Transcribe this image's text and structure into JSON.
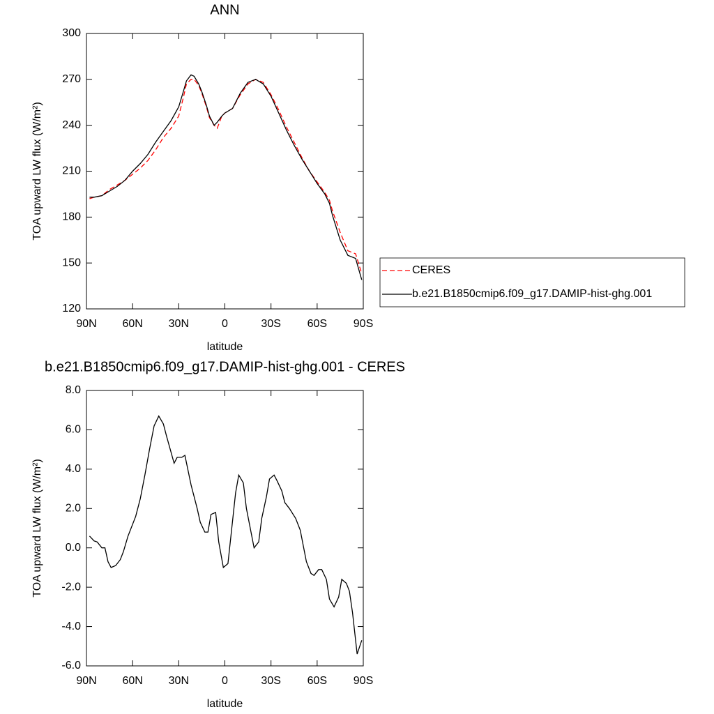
{
  "chart_data": [
    {
      "type": "line",
      "title": "ANN",
      "xlabel": "latitude",
      "ylabel": "TOA upward LW flux (W/m²)",
      "x": [
        88,
        85,
        80,
        75,
        70,
        65,
        60,
        55,
        50,
        45,
        40,
        35,
        30,
        27,
        25,
        22,
        20,
        17,
        15,
        12,
        10,
        7,
        5,
        2,
        0,
        -5,
        -10,
        -15,
        -20,
        -25,
        -30,
        -35,
        -40,
        -45,
        -50,
        -55,
        -60,
        -65,
        -68,
        -70,
        -75,
        -80,
        -85,
        -89
      ],
      "series": [
        {
          "name": "CERES",
          "color": "#ff0000",
          "linestyle": "dashed",
          "values": [
            192,
            193,
            194,
            198,
            201,
            204,
            208,
            212,
            217,
            224,
            232,
            238,
            246,
            258,
            267,
            270,
            270,
            266,
            261,
            252,
            245,
            240,
            238,
            246,
            248,
            251,
            260,
            267,
            270,
            268,
            260,
            250,
            239,
            229,
            219,
            210,
            203,
            196,
            191,
            184,
            170,
            158,
            156,
            143
          ]
        },
        {
          "name": "b.e21.B1850cmip6.f09_g17.DAMIP-hist-ghg.001",
          "color": "#000000",
          "linestyle": "solid",
          "values": [
            193,
            193,
            194,
            197,
            200,
            204,
            210,
            215,
            221,
            229,
            236,
            243,
            252,
            262,
            269,
            273,
            272,
            267,
            262,
            253,
            246,
            240,
            242,
            246,
            248,
            251,
            261,
            268,
            270,
            267,
            259,
            248,
            237,
            227,
            218,
            210,
            202,
            195,
            189,
            181,
            165,
            155,
            153,
            139
          ]
        }
      ],
      "xlim": [
        90,
        -90
      ],
      "ylim": [
        120,
        300
      ],
      "xticks": [
        {
          "value": 90,
          "label": "90N"
        },
        {
          "value": 60,
          "label": "60N"
        },
        {
          "value": 30,
          "label": "30N"
        },
        0,
        {
          "value": -30,
          "label": "30S"
        },
        {
          "value": -60,
          "label": "60S"
        },
        {
          "value": -90,
          "label": "90S"
        }
      ],
      "yticks": [
        120,
        150,
        180,
        210,
        240,
        270,
        300
      ],
      "legend": "right"
    },
    {
      "type": "line",
      "title": "b.e21.B1850cmip6.f09_g17.DAMIP-hist-ghg.001 - CERES",
      "xlabel": "latitude",
      "ylabel": "TOA upward LW flux (W/m²)",
      "x": [
        88,
        85,
        83,
        80,
        78,
        76,
        74,
        71,
        68,
        66,
        63,
        58,
        55,
        52,
        49,
        46,
        43,
        40,
        38,
        33,
        31,
        28,
        26,
        22,
        18,
        16,
        13,
        11,
        9,
        6,
        4,
        1,
        -2,
        -7,
        -9,
        -12,
        -14,
        -17,
        -19,
        -22,
        -24,
        -27,
        -29,
        -32,
        -34,
        -37,
        -39,
        -42,
        -46,
        -49,
        -53,
        -56,
        -58,
        -61,
        -63,
        -66,
        -68,
        -71,
        -74,
        -76,
        -79,
        -81,
        -83,
        -86,
        -89
      ],
      "series": [
        {
          "color": "#000000",
          "linestyle": "solid",
          "values": [
            0.6,
            0.35,
            0.3,
            0.0,
            0.0,
            -0.7,
            -1.0,
            -0.9,
            -0.6,
            -0.2,
            0.6,
            1.6,
            2.5,
            3.7,
            5.0,
            6.2,
            6.7,
            6.3,
            5.7,
            4.3,
            4.6,
            4.6,
            4.7,
            3.2,
            2.0,
            1.3,
            0.8,
            0.8,
            1.7,
            1.8,
            0.3,
            -1.0,
            -0.8,
            2.8,
            3.7,
            3.3,
            2.0,
            0.8,
            0.0,
            0.3,
            1.5,
            2.6,
            3.5,
            3.7,
            3.4,
            2.9,
            2.3,
            2.0,
            1.5,
            0.9,
            -0.7,
            -1.3,
            -1.4,
            -1.1,
            -1.1,
            -1.6,
            -2.6,
            -3.0,
            -2.5,
            -1.6,
            -1.8,
            -2.2,
            -3.3,
            -5.4,
            -4.7
          ]
        }
      ],
      "xlim": [
        90,
        -90
      ],
      "ylim": [
        -6,
        8
      ],
      "xticks": [
        {
          "value": 90,
          "label": "90N"
        },
        {
          "value": 60,
          "label": "60N"
        },
        {
          "value": 30,
          "label": "30N"
        },
        0,
        {
          "value": -30,
          "label": "30S"
        },
        {
          "value": -60,
          "label": "60S"
        },
        {
          "value": -90,
          "label": "90S"
        }
      ],
      "yticks": [
        {
          "value": -6,
          "label": "-6.0"
        },
        {
          "value": -4,
          "label": "-4.0"
        },
        {
          "value": -2,
          "label": "-2.0"
        },
        {
          "value": 0,
          "label": "0.0"
        },
        {
          "value": 2,
          "label": "2.0"
        },
        {
          "value": 4,
          "label": "4.0"
        },
        {
          "value": 6,
          "label": "6.0"
        },
        {
          "value": 8,
          "label": "8.0"
        }
      ]
    }
  ]
}
